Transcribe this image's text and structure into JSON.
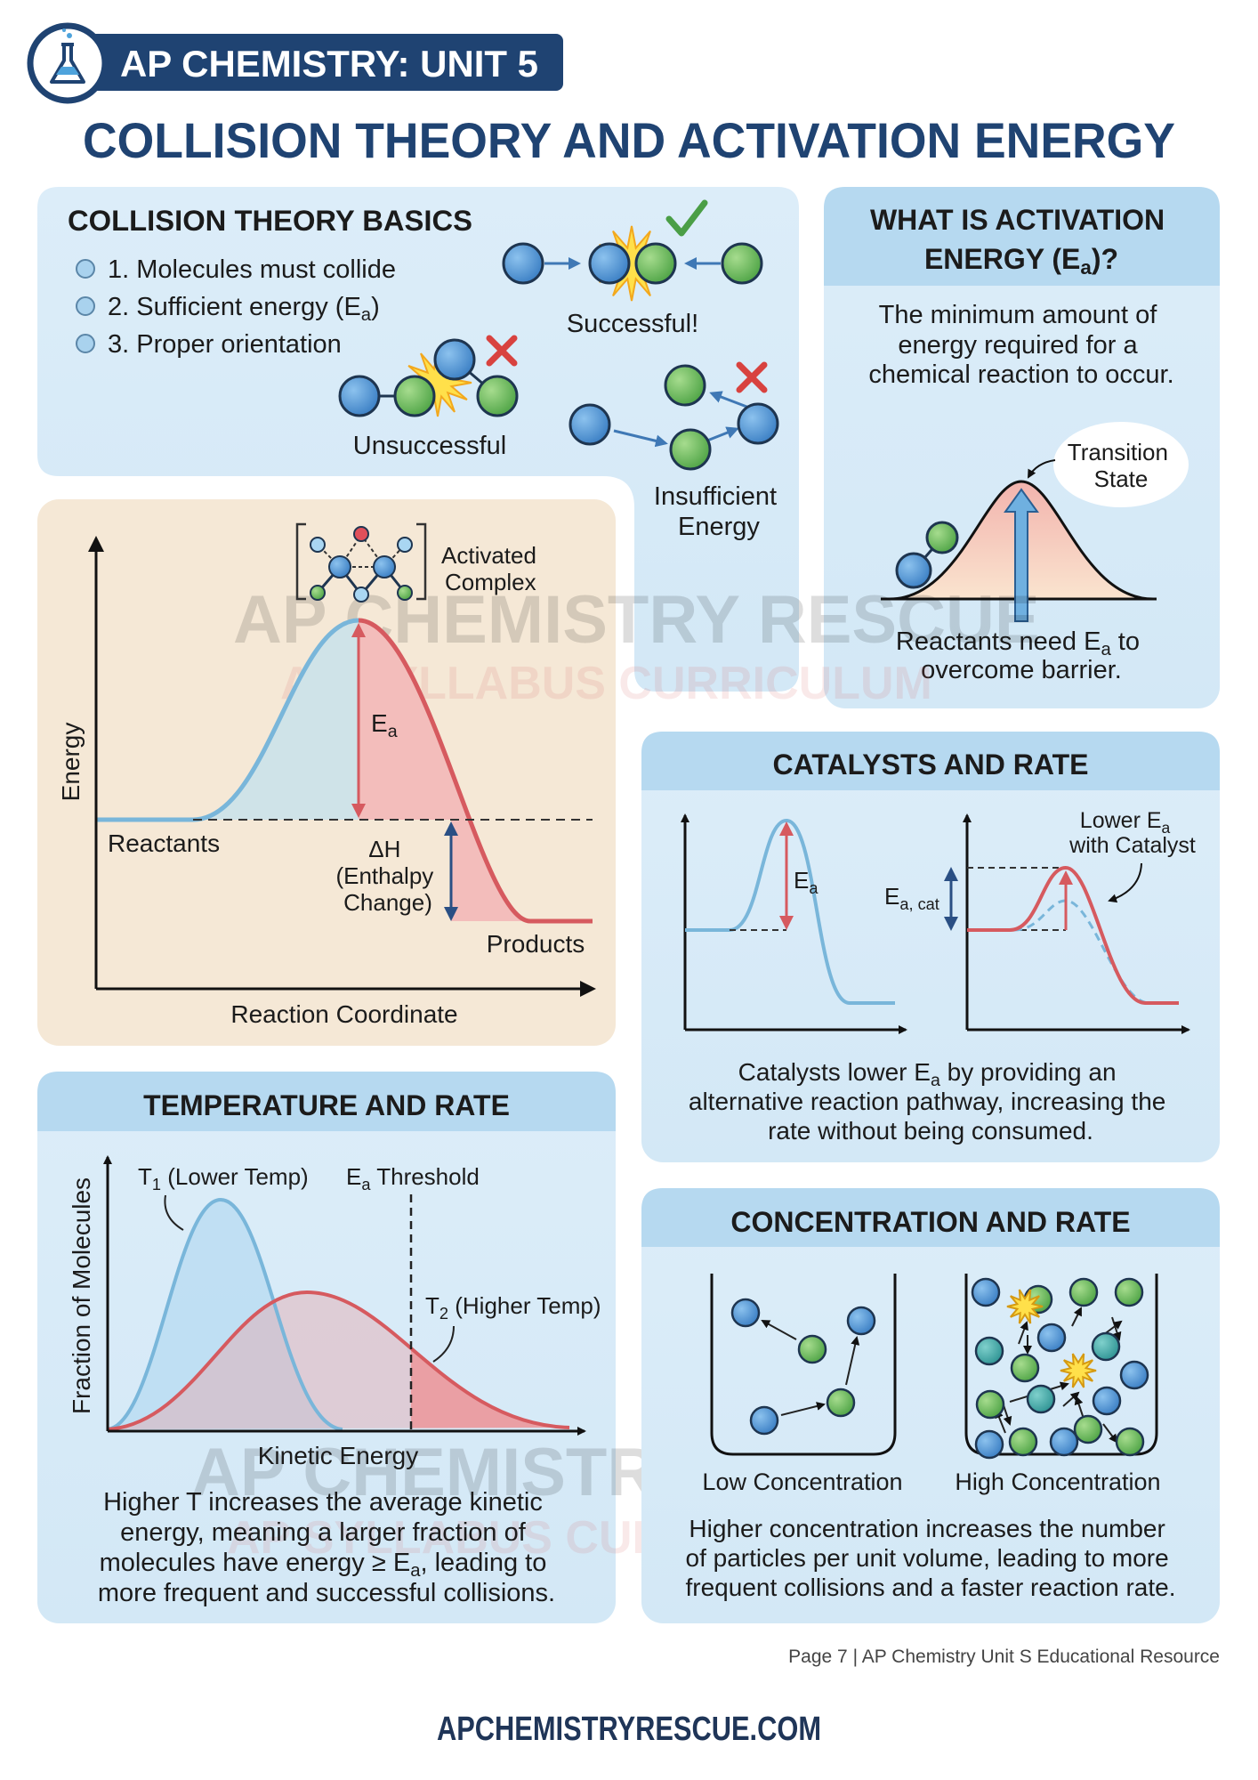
{
  "header": {
    "badge_label": "AP CHEMISTRY: UNIT 5",
    "badge_icon": "flask-icon",
    "title": "COLLISION THEORY AND ACTIVATION ENERGY"
  },
  "colors": {
    "navy": "#1f4372",
    "panel_blue": "#d9ecf8",
    "panel_header_blue": "#b6d9f0",
    "panel_beige": "#f5e8d6",
    "curve_blue": "#79b6da",
    "curve_red": "#d65a5f",
    "molecule_blue": "#4a8fd0",
    "molecule_green": "#67b95a"
  },
  "collision_basics": {
    "title": "COLLISION THEORY BASICS",
    "bullets": [
      {
        "text": "1. Molecules must collide",
        "sub": "",
        "after": ""
      },
      {
        "text": "2. Sufficient energy (E",
        "sub": "a",
        "after": ")"
      },
      {
        "text": "3. Proper orientation",
        "sub": "",
        "after": ""
      }
    ],
    "successful_label": "Successful!",
    "unsuccessful_label": "Unsuccessful",
    "insufficient_label_line1": "Insufficient",
    "insufficient_label_line2": "Energy"
  },
  "activation_energy": {
    "title_line1": "WHAT IS ACTIVATION",
    "title_line2_before": "ENERGY (E",
    "title_line2_sub": "a",
    "title_line2_after": ")?",
    "definition": [
      "The minimum amount of",
      "energy required for a",
      "chemical reaction to occur."
    ],
    "transition_label": [
      "Transition",
      "State"
    ],
    "caption_line1_before": "Reactants need E",
    "caption_line1_sub": "a",
    "caption_line1_after": " to",
    "caption_line2": "overcome barrier."
  },
  "energy_diagram": {
    "y_label": "Energy",
    "x_label": "Reaction Coordinate",
    "reactants_label": "Reactants",
    "products_label": "Products",
    "complex_label": [
      "Activated",
      "Complex"
    ],
    "ea_label": {
      "main": "E",
      "sub": "a"
    },
    "dh_label": [
      "ΔH",
      "(Enthalpy",
      "Change)"
    ]
  },
  "watermark": {
    "line1": "AP CHEMISTRY RESCUE",
    "line2": "AP SYLLABUS CURRICULUM"
  },
  "catalysts": {
    "title": "CATALYSTS AND RATE",
    "ea_label": {
      "main": "E",
      "sub": "a"
    },
    "ea_cat_label": {
      "main": "E",
      "sub": "a, cat"
    },
    "lower_label_before": "Lower E",
    "lower_label_sub": "a",
    "lower_label_line2": "with Catalyst",
    "caption_line1_before": "Catalysts lower E",
    "caption_line1_sub": "a",
    "caption_line1_after": " by providing an",
    "caption_line2": "alternative reaction pathway, increasing the",
    "caption_line3": "rate without being consumed."
  },
  "temperature": {
    "title": "TEMPERATURE AND RATE",
    "y_label": "Fraction of Molecules",
    "x_label": "Kinetic Energy",
    "t1_label": {
      "main": "T",
      "sub": "1",
      "after": " (Lower Temp)"
    },
    "t2_label": {
      "main": "T",
      "sub": "2",
      "after": " (Higher Temp)"
    },
    "threshold_label": {
      "main": "E",
      "sub": "a",
      "after": " Threshold"
    },
    "caption": [
      {
        "text": "Higher T increases the average kinetic",
        "sub": "",
        "after": ""
      },
      {
        "text": "energy, meaning a larger fraction of",
        "sub": "",
        "after": ""
      },
      {
        "text": "molecules have energy ≥ E",
        "sub": "a",
        "after": ", leading to"
      },
      {
        "text": "more frequent and successful collisions.",
        "sub": "",
        "after": ""
      }
    ]
  },
  "concentration": {
    "title": "CONCENTRATION AND RATE",
    "low_label": "Low Concentration",
    "high_label": "High Concentration",
    "caption": [
      "Higher concentration increases the number",
      "of particles per unit volume, leading to more",
      "frequent collisions and a faster reaction rate."
    ]
  },
  "footer": {
    "page_note": "Page 7 | AP Chemistry Unit S Educational Resource",
    "website": "APCHEMISTRYRESCUE.COM"
  }
}
